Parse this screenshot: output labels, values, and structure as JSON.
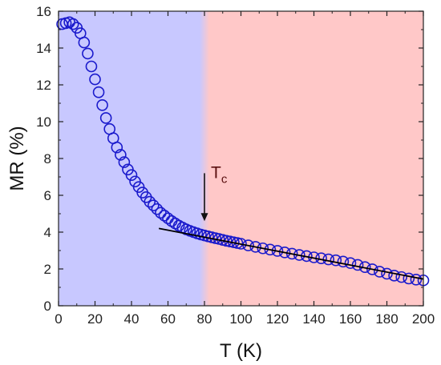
{
  "chart_data": {
    "type": "scatter",
    "title": "",
    "xlabel": "T (K)",
    "ylabel": "MR (%)",
    "xlim": [
      0,
      200
    ],
    "ylim": [
      0,
      16
    ],
    "xticks": [
      0,
      20,
      40,
      60,
      80,
      100,
      120,
      140,
      160,
      180,
      200
    ],
    "yticks": [
      0,
      2,
      4,
      6,
      8,
      10,
      12,
      14,
      16
    ],
    "grid": false,
    "legend": "none",
    "regions": [
      {
        "x_from": 0,
        "x_to": 80,
        "color": "#c8c8ff"
      },
      {
        "x_from": 80,
        "x_to": 200,
        "color": "#ffc8c8"
      }
    ],
    "series": [
      {
        "marker": "open-circle",
        "color": "#1a1acc",
        "x": [
          2,
          4,
          6,
          8,
          10,
          12,
          14,
          16,
          18,
          20,
          22,
          24,
          26,
          28,
          30,
          32,
          34,
          36,
          38,
          40,
          42,
          44,
          46,
          48,
          50,
          52,
          54,
          56,
          58,
          60,
          62,
          64,
          66,
          68,
          70,
          72,
          74,
          76,
          78,
          80,
          82,
          84,
          86,
          88,
          90,
          92,
          94,
          96,
          98,
          100,
          104,
          108,
          112,
          116,
          120,
          124,
          128,
          132,
          136,
          140,
          144,
          148,
          152,
          156,
          160,
          164,
          168,
          172,
          176,
          180,
          184,
          188,
          192,
          196,
          200
        ],
        "y": [
          15.3,
          15.35,
          15.4,
          15.3,
          15.1,
          14.8,
          14.3,
          13.7,
          13.0,
          12.3,
          11.6,
          10.9,
          10.2,
          9.6,
          9.1,
          8.6,
          8.2,
          7.8,
          7.4,
          7.1,
          6.75,
          6.45,
          6.15,
          5.9,
          5.65,
          5.45,
          5.25,
          5.05,
          4.9,
          4.75,
          4.6,
          4.47,
          4.35,
          4.25,
          4.15,
          4.07,
          4.0,
          3.93,
          3.87,
          3.82,
          3.77,
          3.72,
          3.67,
          3.63,
          3.58,
          3.53,
          3.49,
          3.45,
          3.41,
          3.37,
          3.28,
          3.2,
          3.12,
          3.05,
          2.98,
          2.9,
          2.83,
          2.76,
          2.7,
          2.63,
          2.58,
          2.52,
          2.47,
          2.4,
          2.32,
          2.22,
          2.1,
          1.98,
          1.85,
          1.74,
          1.64,
          1.56,
          1.48,
          1.42,
          1.38
        ]
      }
    ],
    "fit_line": {
      "x": [
        55,
        200
      ],
      "y": [
        4.2,
        1.45
      ],
      "color": "#000000"
    },
    "annotations": [
      {
        "text": "T",
        "subscript": "c",
        "x": 80,
        "arrow_from_y": 7.2,
        "arrow_to_y": 4.6
      }
    ]
  }
}
